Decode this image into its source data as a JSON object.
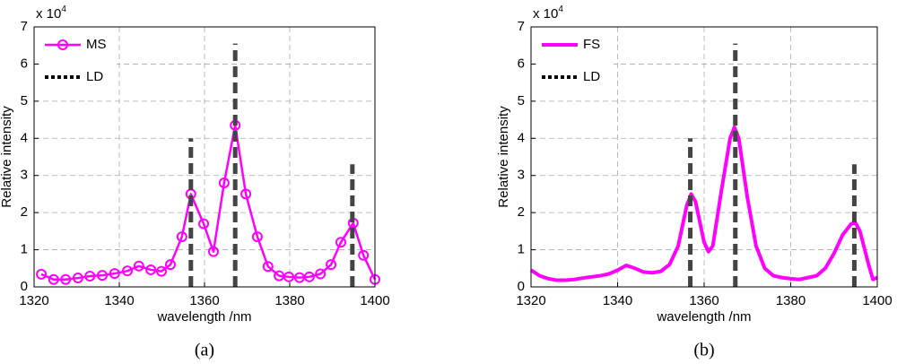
{
  "chart_data": [
    {
      "type": "line",
      "caption": "(a)",
      "xlabel": "wavelength /nm",
      "ylabel": "Relative intensity",
      "y_multiplier": {
        "base": "x 10",
        "exponent": "4"
      },
      "xlim": [
        1320,
        1400
      ],
      "xticks": [
        1320,
        1340,
        1360,
        1380,
        1400
      ],
      "ylim": [
        0,
        7
      ],
      "yticks": [
        0,
        1,
        2,
        3,
        4,
        5,
        6,
        7
      ],
      "grid": true,
      "legend": "upper left",
      "series": [
        {
          "name": "MS",
          "color": "#ff00ff",
          "marker": "circle",
          "x": [
            1321.7,
            1324.6,
            1327.4,
            1330.3,
            1333.1,
            1336.0,
            1338.9,
            1341.9,
            1344.6,
            1347.4,
            1349.9,
            1352.0,
            1354.7,
            1356.8,
            1359.8,
            1362.1,
            1364.6,
            1367.2,
            1369.7,
            1372.4,
            1374.9,
            1377.5,
            1379.8,
            1382.3,
            1384.6,
            1387.2,
            1389.7,
            1392.0,
            1394.9,
            1397.3,
            1400.0
          ],
          "values": [
            0.34,
            0.2,
            0.2,
            0.24,
            0.29,
            0.31,
            0.36,
            0.43,
            0.56,
            0.46,
            0.42,
            0.6,
            1.35,
            2.5,
            1.7,
            0.95,
            2.8,
            4.35,
            2.5,
            1.35,
            0.55,
            0.3,
            0.27,
            0.25,
            0.27,
            0.35,
            0.6,
            1.2,
            1.72,
            0.85,
            0.2
          ]
        },
        {
          "name": "LD",
          "color": "#444444",
          "style": "stem",
          "x": [
            1356.8,
            1367.2,
            1394.7
          ],
          "values": [
            4.0,
            6.55,
            3.3
          ]
        }
      ]
    },
    {
      "type": "line",
      "caption": "(b)",
      "xlabel": "wavelength /nm",
      "ylabel": "Relative intensity",
      "y_multiplier": {
        "base": "x 10",
        "exponent": "4"
      },
      "xlim": [
        1320,
        1400
      ],
      "xticks": [
        1320,
        1340,
        1360,
        1380,
        1400
      ],
      "ylim": [
        0,
        7
      ],
      "yticks": [
        0,
        1,
        2,
        3,
        4,
        5,
        6,
        7
      ],
      "grid": true,
      "legend": "upper left",
      "series": [
        {
          "name": "FS",
          "color": "#ff00ff",
          "x": [
            1320,
            1322,
            1324,
            1326,
            1328,
            1330,
            1332,
            1334,
            1336,
            1338,
            1340,
            1342,
            1344,
            1346,
            1348,
            1350,
            1352,
            1354,
            1356,
            1357,
            1358,
            1360,
            1361,
            1362,
            1364,
            1366,
            1367,
            1368,
            1370,
            1372,
            1374,
            1376,
            1378,
            1380,
            1382,
            1384,
            1386,
            1388,
            1390,
            1392,
            1394,
            1395,
            1396,
            1398,
            1399,
            1400
          ],
          "values": [
            0.45,
            0.3,
            0.22,
            0.18,
            0.18,
            0.2,
            0.24,
            0.27,
            0.3,
            0.35,
            0.45,
            0.58,
            0.5,
            0.4,
            0.38,
            0.42,
            0.6,
            1.1,
            2.2,
            2.5,
            2.3,
            1.2,
            0.95,
            1.1,
            2.6,
            4.0,
            4.3,
            4.0,
            2.4,
            1.1,
            0.5,
            0.3,
            0.25,
            0.22,
            0.2,
            0.25,
            0.3,
            0.5,
            0.9,
            1.4,
            1.7,
            1.72,
            1.5,
            0.6,
            0.2,
            0.25
          ]
        },
        {
          "name": "LD",
          "color": "#444444",
          "style": "stem",
          "x": [
            1356.8,
            1367.2,
            1394.7
          ],
          "values": [
            4.0,
            6.55,
            3.3
          ]
        }
      ]
    }
  ]
}
